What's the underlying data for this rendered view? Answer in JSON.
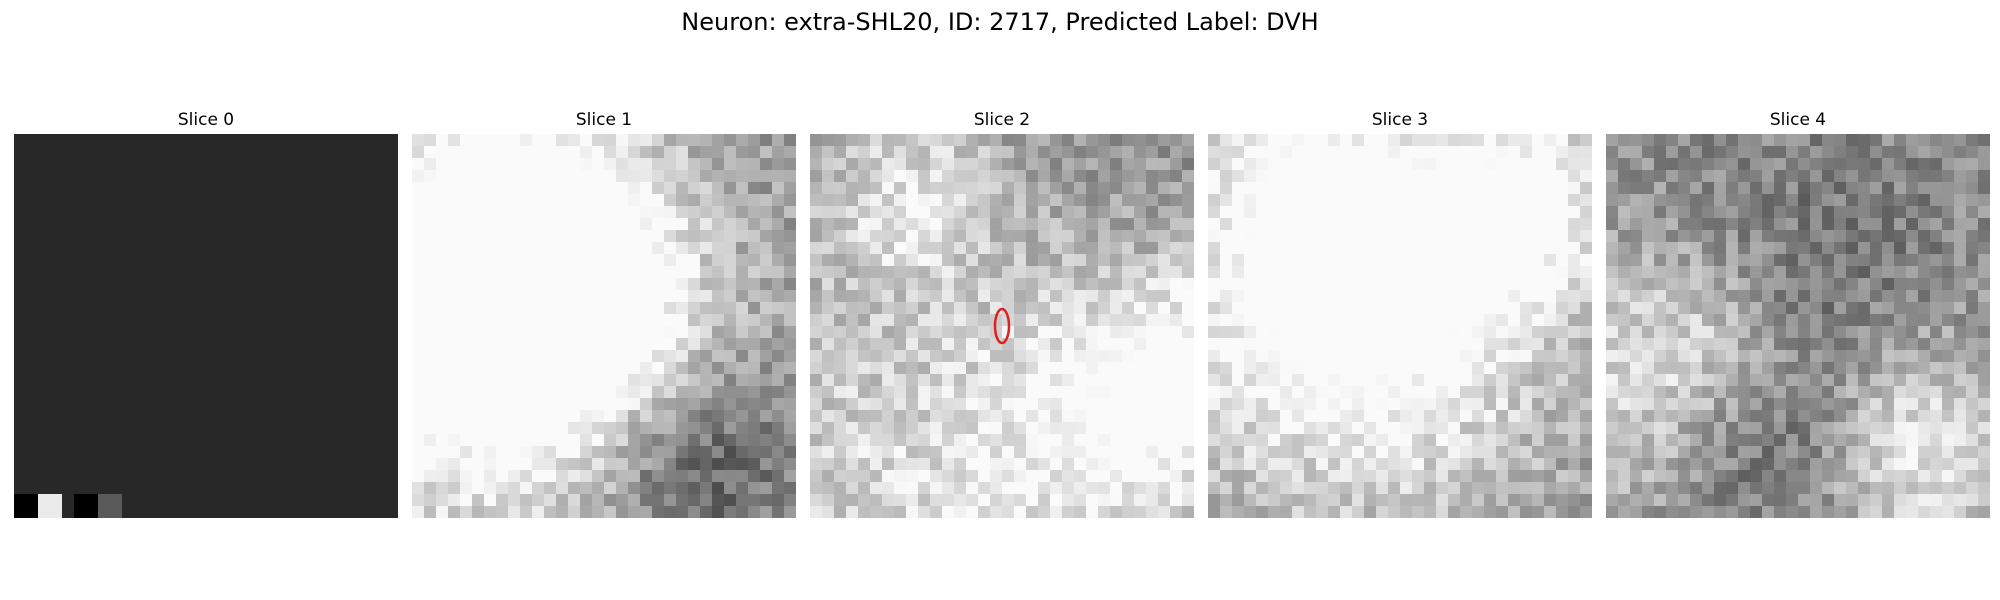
{
  "figure": {
    "title": "Neuron: extra-SHL20, ID: 2717, Predicted Label: DVH",
    "panels": [
      {
        "title": "Slice 0",
        "kind": "blank",
        "base_gray": 40
      },
      {
        "title": "Slice 1",
        "kind": "texture",
        "seed": 11
      },
      {
        "title": "Slice 2",
        "kind": "texture",
        "seed": 27,
        "marker": true
      },
      {
        "title": "Slice 3",
        "kind": "texture",
        "seed": 53
      },
      {
        "title": "Slice 4",
        "kind": "texture",
        "seed": 91
      }
    ],
    "marker_color": "#e02020"
  }
}
